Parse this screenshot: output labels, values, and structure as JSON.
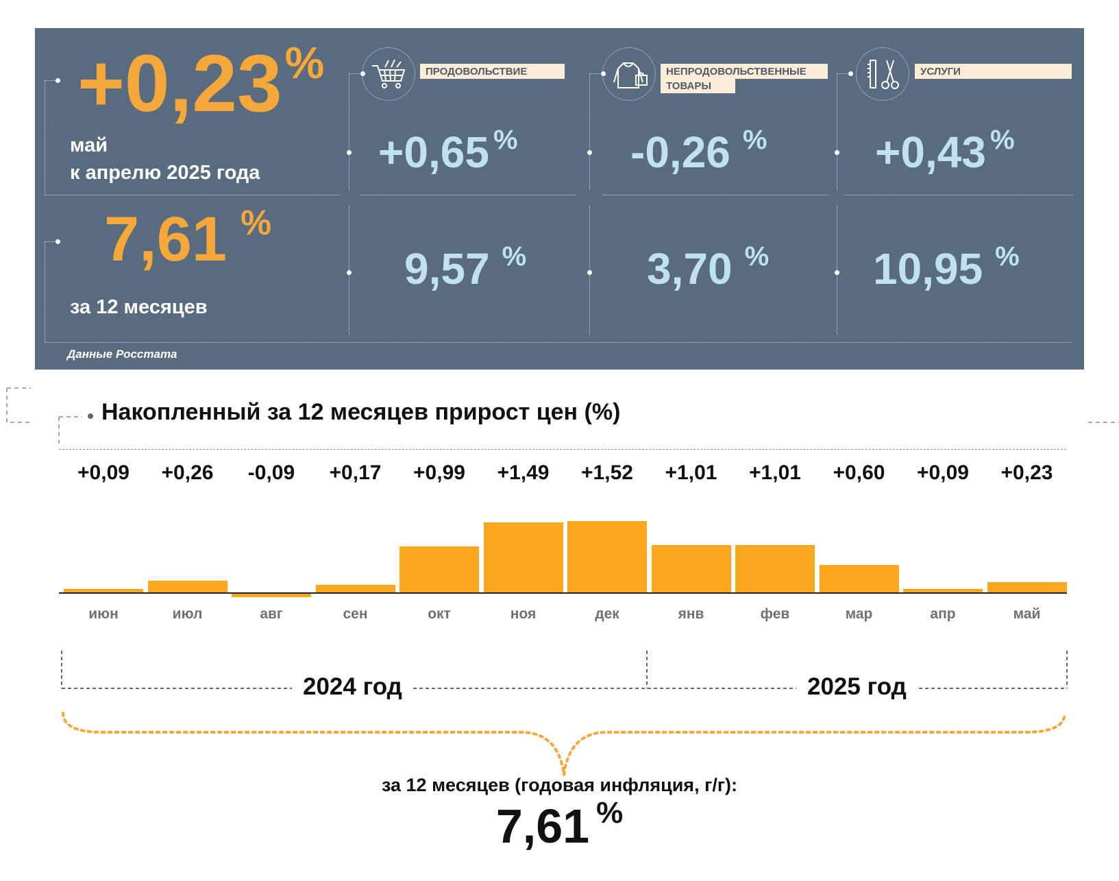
{
  "summary": {
    "monthly": {
      "value": "+0,23",
      "pct": "%",
      "line1": "май",
      "line2": "к апрелю 2025 года"
    },
    "annual": {
      "value": "7,61",
      "pct": "%",
      "label": "за 12 месяцев"
    },
    "source": "Данные Росстата"
  },
  "categories": [
    {
      "name": "ПРОДОВОЛЬСТВИЕ",
      "monthly": "+0,65",
      "annual": "9,57",
      "pct": "%",
      "icon": "shopping-cart-icon"
    },
    {
      "name_line1": "НЕПРОДОВОЛЬСТВЕННЫЕ",
      "name_line2": "ТОВАРЫ",
      "monthly": "-0,26",
      "annual": "3,70",
      "pct": "%",
      "icon": "clothes-icon"
    },
    {
      "name": "УСЛУГИ",
      "monthly": "+0,43",
      "annual": "10,95",
      "pct": "%",
      "icon": "scissors-comb-icon"
    }
  ],
  "chart_data": {
    "type": "bar",
    "title": "Накопленный за 12 месяцев прирост цен (%)",
    "categories": [
      "июн",
      "июл",
      "авг",
      "сен",
      "окт",
      "ноя",
      "дек",
      "янв",
      "фев",
      "мар",
      "апр",
      "май"
    ],
    "values": [
      0.09,
      0.26,
      -0.09,
      0.17,
      0.99,
      1.49,
      1.52,
      1.01,
      1.01,
      0.6,
      0.09,
      0.23
    ],
    "value_labels": [
      "+0,09",
      "+0,26",
      "-0,09",
      "+0,17",
      "+0,99",
      "+1,49",
      "+1,52",
      "+1,01",
      "+1,01",
      "+0,60",
      "+0,09",
      "+0,23"
    ],
    "bar_color": "#fba71f",
    "years": [
      "2024 год",
      "2025 год"
    ]
  },
  "footer": {
    "label": "за 12 месяцев (годовая инфляция, г/г):",
    "value": "7,61",
    "pct": "%"
  }
}
